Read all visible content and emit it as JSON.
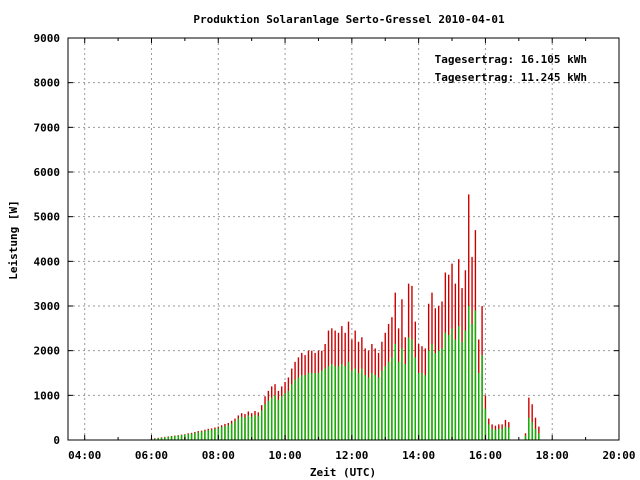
{
  "chart_data": {
    "type": "bar",
    "title": "Produktion Solaranlage Serto-Gressel 2010-04-01",
    "xlabel": "Zeit (UTC)",
    "ylabel": "Leistung [W]",
    "xlim": [
      3.5,
      20.0
    ],
    "ylim": [
      0,
      9000
    ],
    "xticks": [
      "04:00",
      "06:00",
      "08:00",
      "10:00",
      "12:00",
      "14:00",
      "16:00",
      "18:00",
      "20:00"
    ],
    "yticks": [
      "0",
      "1000",
      "2000",
      "3000",
      "4000",
      "5000",
      "6000",
      "7000",
      "8000",
      "9000"
    ],
    "grid": true,
    "legend_position": "top-right",
    "series": [
      {
        "name": "Tagesertrag: 16.105 kWh",
        "color": "#cc0000",
        "x": [
          6.0,
          6.1,
          6.2,
          6.3,
          6.4,
          6.5,
          6.6,
          6.7,
          6.8,
          6.9,
          7.0,
          7.1,
          7.2,
          7.3,
          7.4,
          7.5,
          7.6,
          7.7,
          7.8,
          7.9,
          8.0,
          8.1,
          8.2,
          8.3,
          8.4,
          8.5,
          8.6,
          8.7,
          8.8,
          8.9,
          9.0,
          9.1,
          9.2,
          9.3,
          9.4,
          9.5,
          9.6,
          9.7,
          9.8,
          9.9,
          10.0,
          10.1,
          10.2,
          10.3,
          10.4,
          10.5,
          10.6,
          10.7,
          10.8,
          10.9,
          11.0,
          11.1,
          11.2,
          11.3,
          11.4,
          11.5,
          11.6,
          11.7,
          11.8,
          11.9,
          12.0,
          12.1,
          12.2,
          12.3,
          12.4,
          12.5,
          12.6,
          12.7,
          12.8,
          12.9,
          13.0,
          13.1,
          13.2,
          13.3,
          13.4,
          13.5,
          13.6,
          13.7,
          13.8,
          13.9,
          14.0,
          14.1,
          14.2,
          14.3,
          14.4,
          14.5,
          14.6,
          14.7,
          14.8,
          14.9,
          15.0,
          15.1,
          15.2,
          15.3,
          15.4,
          15.5,
          15.6,
          15.7,
          15.8,
          15.9,
          16.0,
          16.1,
          16.2,
          16.3,
          16.4,
          16.5,
          16.6,
          16.7,
          17.2,
          17.3,
          17.4,
          17.5,
          17.6
        ],
        "values": [
          30,
          40,
          50,
          60,
          70,
          80,
          90,
          100,
          110,
          120,
          130,
          150,
          160,
          180,
          200,
          210,
          230,
          250,
          260,
          280,
          300,
          330,
          360,
          380,
          430,
          480,
          550,
          600,
          580,
          640,
          600,
          650,
          620,
          780,
          980,
          1100,
          1200,
          1250,
          1100,
          1200,
          1300,
          1400,
          1600,
          1750,
          1850,
          1950,
          1900,
          2000,
          2000,
          1950,
          2000,
          2000,
          2150,
          2450,
          2500,
          2450,
          2400,
          2550,
          2400,
          2650,
          2250,
          2450,
          2200,
          2300,
          2050,
          2000,
          2150,
          2050,
          1950,
          2200,
          2400,
          2600,
          2750,
          3300,
          2500,
          3150,
          2300,
          3500,
          3450,
          2650,
          2150,
          2100,
          2050,
          3050,
          3300,
          2950,
          3000,
          3100,
          3750,
          3700,
          3950,
          3500,
          4050,
          3400,
          3800,
          5500,
          4100,
          4700,
          2250,
          3000,
          1000,
          480,
          350,
          320,
          350,
          350,
          450,
          400,
          150,
          950,
          800,
          500,
          300
        ]
      },
      {
        "name": "Tagesertrag: 11.245 kWh",
        "color": "#00bb00",
        "x": [
          6.0,
          6.1,
          6.2,
          6.3,
          6.4,
          6.5,
          6.6,
          6.7,
          6.8,
          6.9,
          7.0,
          7.1,
          7.2,
          7.3,
          7.4,
          7.5,
          7.6,
          7.7,
          7.8,
          7.9,
          8.0,
          8.1,
          8.2,
          8.3,
          8.4,
          8.5,
          8.6,
          8.7,
          8.8,
          8.9,
          9.0,
          9.1,
          9.2,
          9.3,
          9.4,
          9.5,
          9.6,
          9.7,
          9.8,
          9.9,
          10.0,
          10.1,
          10.2,
          10.3,
          10.4,
          10.5,
          10.6,
          10.7,
          10.8,
          10.9,
          11.0,
          11.1,
          11.2,
          11.3,
          11.4,
          11.5,
          11.6,
          11.7,
          11.8,
          11.9,
          12.0,
          12.1,
          12.2,
          12.3,
          12.4,
          12.5,
          12.6,
          12.7,
          12.8,
          12.9,
          13.0,
          13.1,
          13.2,
          13.3,
          13.4,
          13.5,
          13.6,
          13.7,
          13.8,
          13.9,
          14.0,
          14.1,
          14.2,
          14.3,
          14.4,
          14.5,
          14.6,
          14.7,
          14.8,
          14.9,
          15.0,
          15.1,
          15.2,
          15.3,
          15.4,
          15.5,
          15.6,
          15.7,
          15.8,
          15.9,
          16.0,
          16.1,
          16.2,
          16.3,
          16.4,
          16.5,
          16.6,
          16.7,
          17.2,
          17.3,
          17.4,
          17.5,
          17.6
        ],
        "values": [
          20,
          30,
          40,
          50,
          60,
          70,
          80,
          90,
          100,
          110,
          120,
          130,
          140,
          160,
          170,
          190,
          200,
          220,
          230,
          250,
          260,
          290,
          310,
          330,
          370,
          420,
          480,
          520,
          500,
          550,
          520,
          560,
          540,
          660,
          800,
          880,
          950,
          1000,
          900,
          980,
          1050,
          1100,
          1250,
          1350,
          1400,
          1450,
          1450,
          1500,
          1500,
          1500,
          1500,
          1550,
          1600,
          1650,
          1700,
          1650,
          1650,
          1700,
          1650,
          1750,
          1550,
          1600,
          1500,
          1600,
          1450,
          1400,
          1500,
          1450,
          1400,
          1550,
          1650,
          1750,
          1850,
          2150,
          1750,
          2050,
          1700,
          2300,
          2250,
          1850,
          1500,
          1500,
          1450,
          2000,
          2150,
          1950,
          2000,
          2050,
          2400,
          2350,
          2500,
          2250,
          2550,
          2200,
          2450,
          3000,
          2600,
          2900,
          1500,
          1900,
          700,
          350,
          250,
          230,
          250,
          250,
          300,
          280,
          100,
          500,
          400,
          250,
          150
        ]
      }
    ]
  }
}
